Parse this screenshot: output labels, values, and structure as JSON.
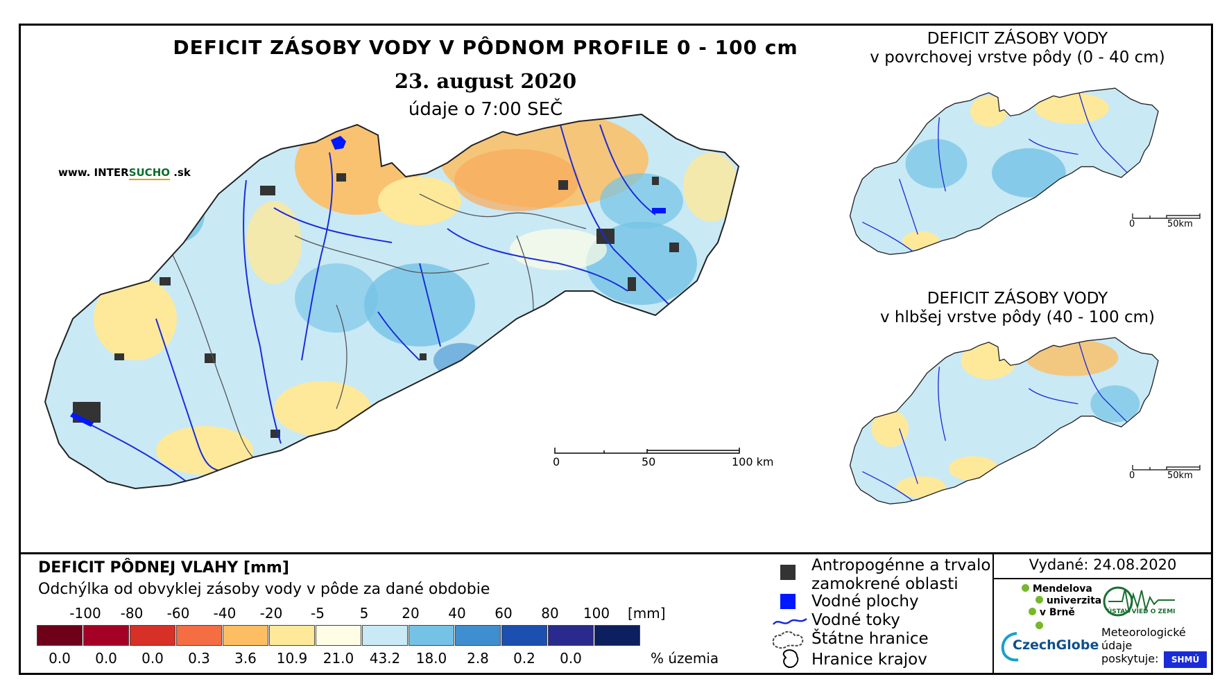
{
  "title": "DEFICIT ZÁSOBY VODY V PÔDNOM PROFILE 0 - 100 cm",
  "date": "23. august 2020",
  "time_note": "údaje o 7:00 SEČ",
  "website": {
    "prefix": "www. INTER",
    "highlight": "SUCHO",
    "suffix": " .sk"
  },
  "side_maps": [
    {
      "line1": "DEFICIT ZÁSOBY VODY",
      "line2": "v povrchovej vrstve pôdy (0 - 40 cm)",
      "scale": [
        "0",
        "50km"
      ]
    },
    {
      "line1": "DEFICIT ZÁSOBY VODY",
      "line2": "v hlbšej vrstve pôdy (40 - 100 cm)",
      "scale": [
        "0",
        "50km"
      ]
    }
  ],
  "main_scale": [
    "0",
    "50",
    "100 km"
  ],
  "legend": {
    "title": "DEFICIT PÔDNEJ VLAHY [mm]",
    "subtitle": "Odchýlka od obvyklej zásoby vody v pôde za dané obdobie",
    "ticks": [
      "-100",
      "-80",
      "-60",
      "-40",
      "-20",
      "-5",
      "5",
      "20",
      "40",
      "60",
      "80",
      "100"
    ],
    "unit": "[mm]",
    "classes": [
      {
        "color": "#6e0019",
        "percent": "0.0"
      },
      {
        "color": "#a50026",
        "percent": "0.0"
      },
      {
        "color": "#d73027",
        "percent": "0.0"
      },
      {
        "color": "#f46d43",
        "percent": "0.3"
      },
      {
        "color": "#fdbe63",
        "percent": "3.6"
      },
      {
        "color": "#fee99a",
        "percent": "10.9"
      },
      {
        "color": "#fffde6",
        "percent": "21.0"
      },
      {
        "color": "#c9e9f5",
        "percent": "43.2"
      },
      {
        "color": "#74c3e6",
        "percent": "18.0"
      },
      {
        "color": "#3f8fd0",
        "percent": "2.8"
      },
      {
        "color": "#1d4fb0",
        "percent": "0.2"
      },
      {
        "color": "#2a2a8e",
        "percent": "0.0"
      },
      {
        "color": "#0c1f5e",
        "percent": ""
      }
    ],
    "percent_label": "% územia"
  },
  "symbols": {
    "urban_line1": "Antropogénne a trvalo",
    "urban_line2": "zamokrené oblasti",
    "water_bodies": "Vodné plochy",
    "rivers": "Vodné toky",
    "state_border": "Štátne hranice",
    "region_border": "Hranice krajov"
  },
  "issued": "Vydané: 24.08.2020",
  "logos": {
    "mendel": [
      "Mendelova",
      "univerzita",
      "v Brně"
    ],
    "czechglobe": "CzechGlobe",
    "ustav": "ÚSTAV VIED O ZEMI",
    "meteo": [
      "Meteorologické",
      "údaje",
      "poskytuje:"
    ],
    "shmu": "SHMÚ"
  },
  "colors": {
    "water": "#0018ff",
    "river": "#1a2bd8",
    "urban": "#333333"
  }
}
